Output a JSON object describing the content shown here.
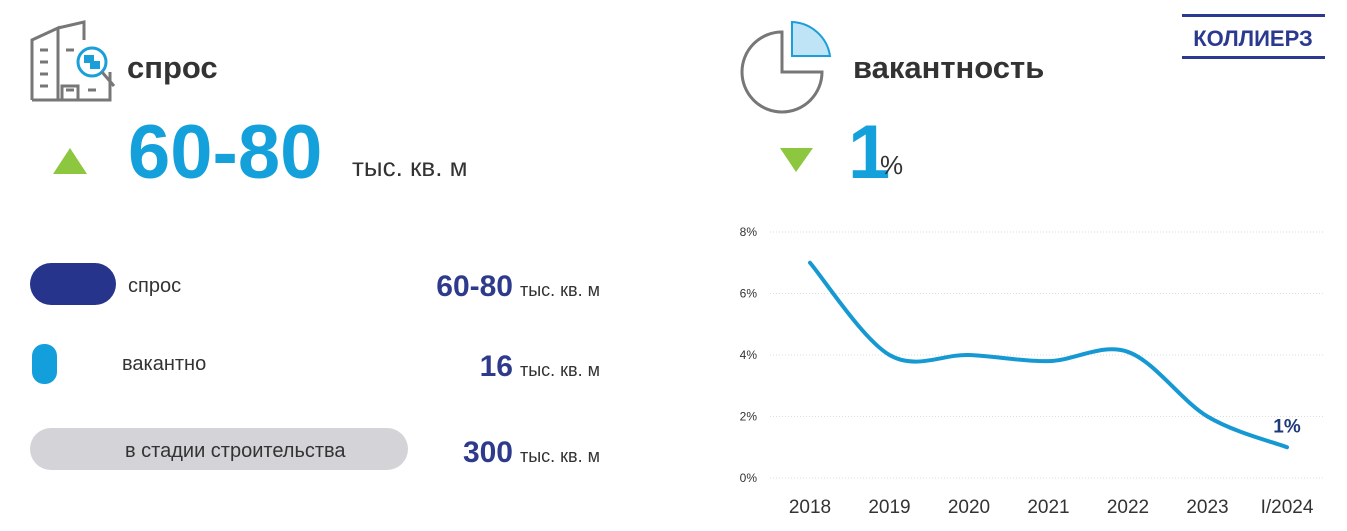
{
  "demand": {
    "title": "спрос",
    "value": "60-80",
    "unit": "тыс. кв. м"
  },
  "vacancy": {
    "title": "вакантность",
    "value": "1",
    "unit": "%"
  },
  "logo": "КОЛЛИЕРЗ",
  "rows": [
    {
      "label": "спрос",
      "value": "60-80",
      "unit": "тыс. кв. м"
    },
    {
      "label": "вакантно",
      "value": "16",
      "unit": "тыс. кв. м"
    },
    {
      "label": "в стадии строительства",
      "value": "300",
      "unit": "тыс. кв. м"
    }
  ],
  "chart_data": {
    "type": "line",
    "categories": [
      "2018",
      "2019",
      "2020",
      "2021",
      "2022",
      "2023",
      "I/2024"
    ],
    "series": [
      {
        "color": "#1699d3",
        "values": [
          7,
          4,
          4,
          3.8,
          4.1,
          2,
          1
        ],
        "value_labels": [
          null,
          null,
          null,
          null,
          null,
          null,
          "1%"
        ]
      }
    ],
    "ylim": [
      0,
      8
    ],
    "yticks": [
      {
        "value": 0,
        "label": "0%"
      },
      {
        "value": 2,
        "label": "2%"
      },
      {
        "value": 4,
        "label": "4%"
      },
      {
        "value": 6,
        "label": "6%"
      },
      {
        "value": 8,
        "label": "8%"
      }
    ],
    "grid": true
  }
}
